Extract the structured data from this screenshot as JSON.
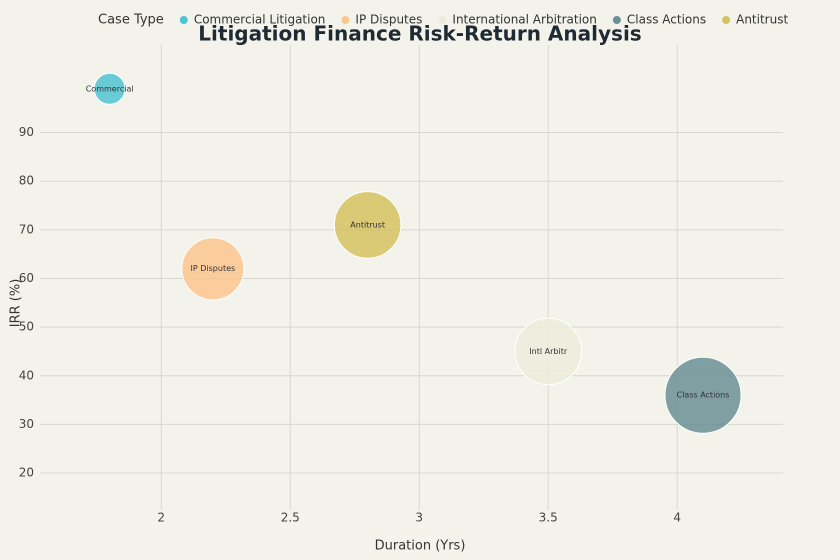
{
  "chart_data": {
    "type": "bubble",
    "title": "Litigation Finance Risk-Return Analysis",
    "x_label": "Duration (Yrs)",
    "y_label": "IRR (%)",
    "legend_title": "Case Type",
    "series": [
      {
        "name": "Commercial Litigation",
        "label": "Commercial",
        "color": "#4fc3d2",
        "x": [
          1.8
        ],
        "values": [
          99
        ],
        "sizes": [
          5
        ]
      },
      {
        "name": "IP Disputes",
        "label": "IP Disputes",
        "color": "#fcc68f",
        "x": [
          2.2
        ],
        "values": [
          62
        ],
        "sizes": [
          20
        ]
      },
      {
        "name": "International Arbitration",
        "label": "Intl Arbitr",
        "color": "#edecdc",
        "x": [
          3.5
        ],
        "values": [
          45
        ],
        "sizes": [
          23
        ]
      },
      {
        "name": "Class Actions",
        "label": "Class Actions",
        "color": "#6a8f96",
        "x": [
          4.1
        ],
        "values": [
          36
        ],
        "sizes": [
          30
        ]
      },
      {
        "name": "Antitrust",
        "label": "Antitrust",
        "color": "#d5c262",
        "x": [
          2.8
        ],
        "values": [
          71
        ],
        "sizes": [
          23
        ]
      }
    ],
    "xlim": [
      1.53,
      4.41
    ],
    "ylim": [
      12.4,
      108
    ],
    "xticks": [
      2,
      2.5,
      3,
      3.5,
      4
    ],
    "yticks": [
      20,
      30,
      40,
      50,
      60,
      70,
      80,
      90
    ],
    "grid": true
  }
}
